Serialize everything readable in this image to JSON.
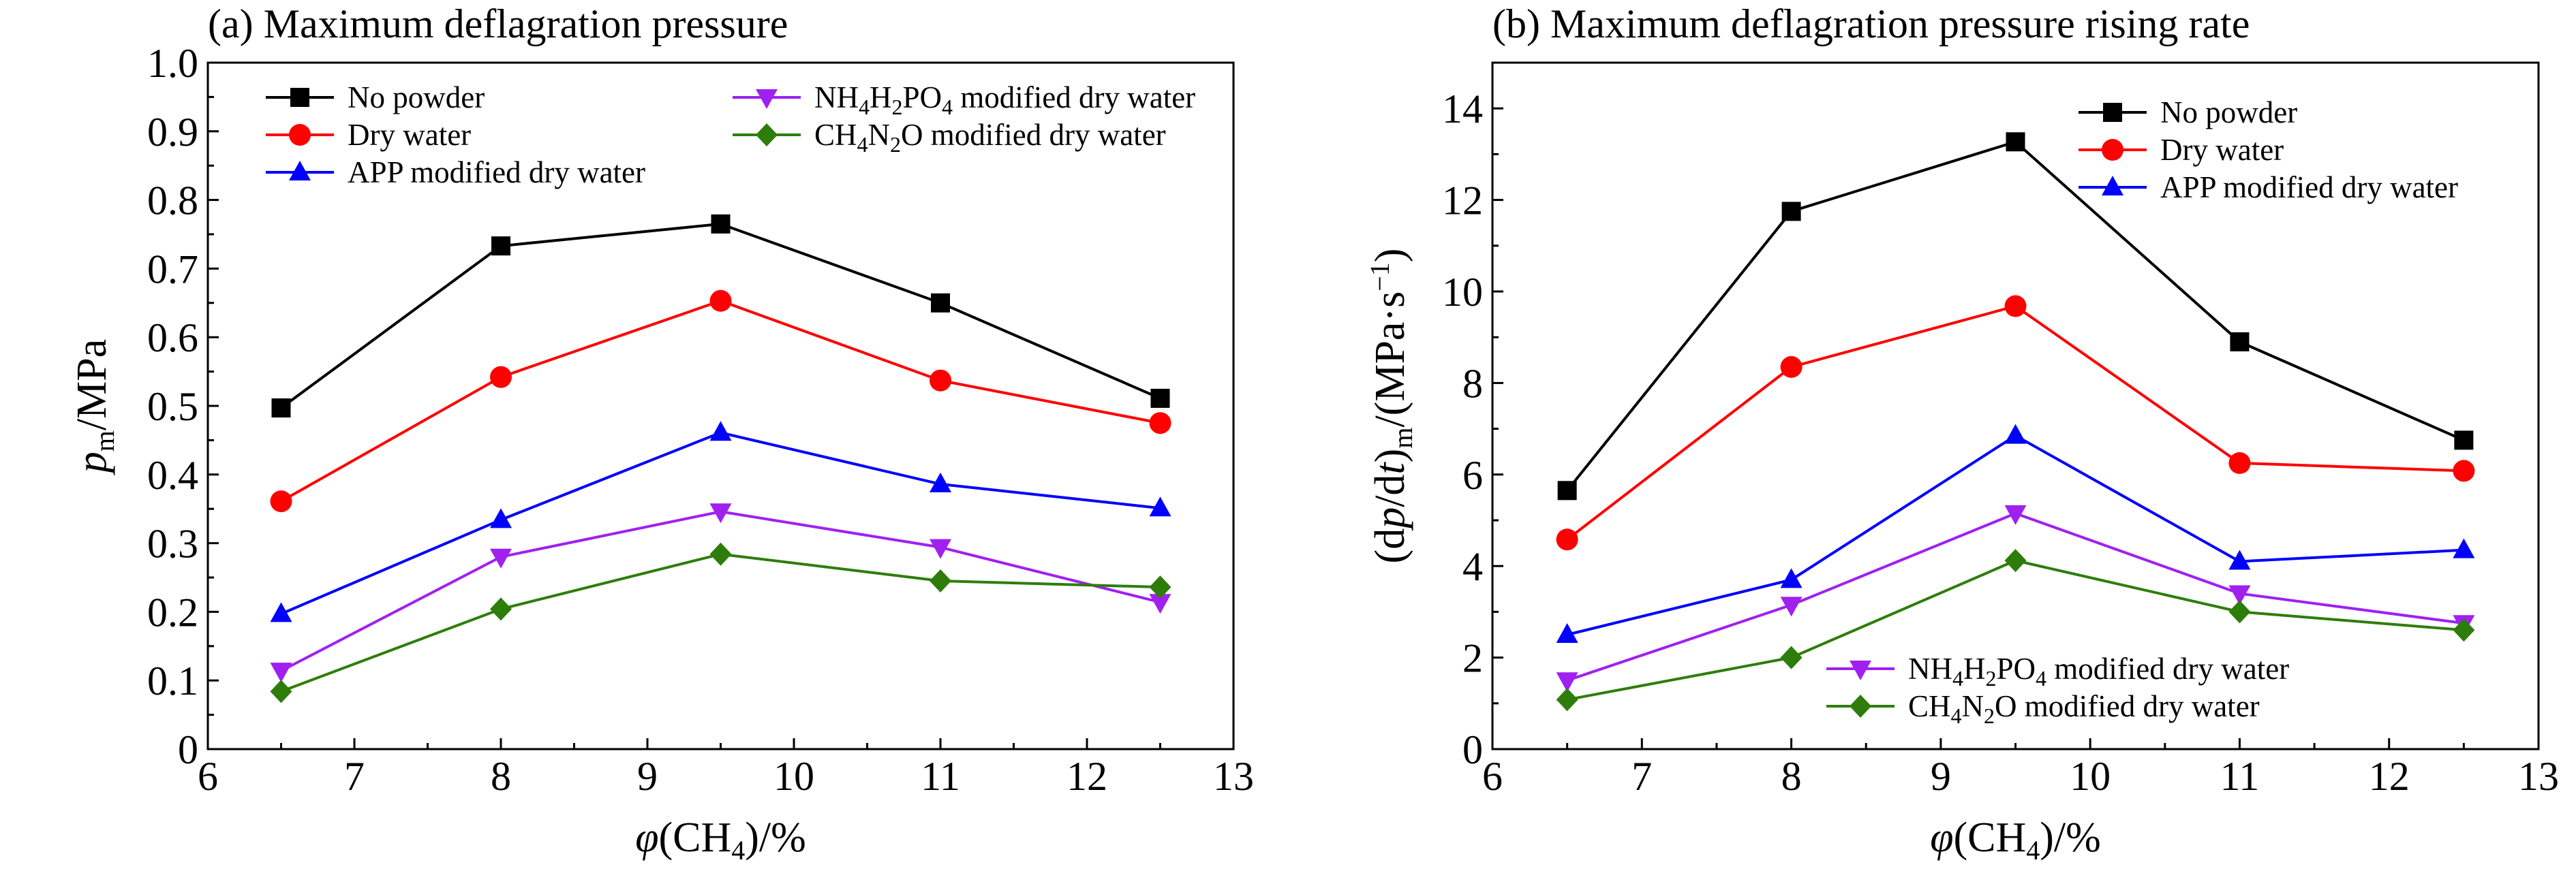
{
  "chart_data": [
    {
      "type": "line",
      "title": "(a) Maximum deflagration pressure",
      "xlabel": "φ(CH4)/%",
      "ylabel": "pm/MPa",
      "xlim": [
        6,
        13
      ],
      "ylim": [
        0,
        1.0
      ],
      "xticks": [
        6,
        7,
        8,
        9,
        10,
        11,
        12,
        13
      ],
      "yticks": [
        0,
        0.1,
        0.2,
        0.3,
        0.4,
        0.5,
        0.6,
        0.7,
        0.8,
        0.9,
        1.0
      ],
      "ytick_labels": [
        "0",
        "0.1",
        "0.2",
        "0.3",
        "0.4",
        "0.5",
        "0.6",
        "0.7",
        "0.8",
        "0.9",
        "1.0"
      ],
      "grid": false,
      "legend": "top (two columns)",
      "x": [
        6.5,
        8,
        9.5,
        11,
        12.5
      ],
      "series": [
        {
          "name": "No powder",
          "color": "#000000",
          "marker": "square",
          "values": [
            0.497,
            0.733,
            0.765,
            0.65,
            0.511
          ]
        },
        {
          "name": "Dry water",
          "color": "#ff0000",
          "marker": "circle",
          "values": [
            0.361,
            0.542,
            0.653,
            0.537,
            0.475
          ]
        },
        {
          "name": "APP modified dry water",
          "color": "#0000ff",
          "marker": "triangle-up",
          "values": [
            0.197,
            0.334,
            0.461,
            0.386,
            0.351
          ]
        },
        {
          "name": "NH4H2PO4 modified dry water",
          "color": "#a020f0",
          "marker": "triangle-down",
          "values": [
            0.114,
            0.28,
            0.346,
            0.294,
            0.214
          ]
        },
        {
          "name": "CH4N2O modified dry water",
          "color": "#2e7d0b",
          "marker": "diamond",
          "values": [
            0.084,
            0.204,
            0.284,
            0.245,
            0.236
          ]
        }
      ]
    },
    {
      "type": "line",
      "title": "(b) Maximum deflagration pressure rising rate",
      "xlabel": "φ(CH4)/%",
      "ylabel": "(dp/dt)m/(MPa·s−1)",
      "xlim": [
        6,
        13
      ],
      "ylim": [
        0,
        15
      ],
      "xticks": [
        6,
        7,
        8,
        9,
        10,
        11,
        12,
        13
      ],
      "yticks": [
        0,
        2,
        4,
        6,
        8,
        10,
        12,
        14
      ],
      "ytick_labels": [
        "0",
        "2",
        "4",
        "6",
        "8",
        "10",
        "12",
        "14"
      ],
      "grid": false,
      "legend": "top-right and bottom-center",
      "x": [
        6.5,
        8,
        9.5,
        11,
        12.5
      ],
      "series": [
        {
          "name": "No powder",
          "color": "#000000",
          "marker": "square",
          "values": [
            5.65,
            11.75,
            13.27,
            8.9,
            6.75
          ]
        },
        {
          "name": "Dry water",
          "color": "#ff0000",
          "marker": "circle",
          "values": [
            4.58,
            8.35,
            9.68,
            6.25,
            6.08
          ]
        },
        {
          "name": "APP modified dry water",
          "color": "#0000ff",
          "marker": "triangle-up",
          "values": [
            2.5,
            3.7,
            6.85,
            4.1,
            4.35
          ]
        },
        {
          "name": "NH4H2PO4 modified dry water",
          "color": "#a020f0",
          "marker": "triangle-down",
          "values": [
            1.5,
            3.15,
            5.15,
            3.4,
            2.75
          ]
        },
        {
          "name": "CH4N2O modified dry water",
          "color": "#2e7d0b",
          "marker": "diamond",
          "values": [
            1.08,
            2.0,
            4.12,
            3.0,
            2.6
          ]
        }
      ]
    }
  ]
}
